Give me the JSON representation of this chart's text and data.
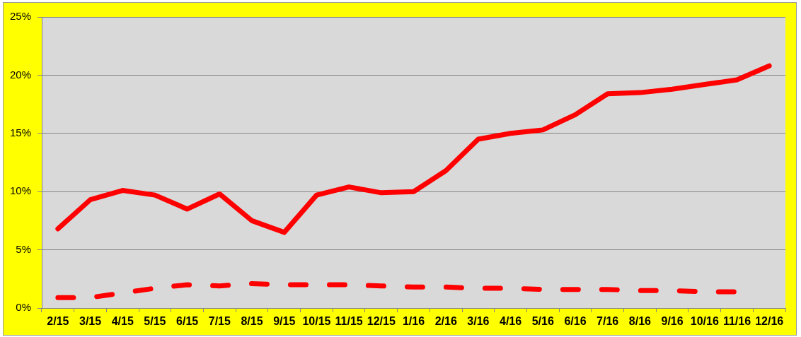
{
  "chart_data": {
    "type": "line",
    "categories": [
      "2/15",
      "3/15",
      "4/15",
      "5/15",
      "6/15",
      "7/15",
      "8/15",
      "9/15",
      "10/15",
      "11/15",
      "12/15",
      "1/16",
      "2/16",
      "3/16",
      "4/16",
      "5/16",
      "6/16",
      "7/16",
      "8/16",
      "9/16",
      "10/16",
      "11/16",
      "12/16"
    ],
    "series": [
      {
        "color": "#ff0000",
        "line_style": "solid",
        "values": [
          6.8,
          9.3,
          10.1,
          9.7,
          8.5,
          9.8,
          7.5,
          6.5,
          9.7,
          10.4,
          9.9,
          10.0,
          11.8,
          14.5,
          15.0,
          15.3,
          16.6,
          18.4,
          18.5,
          18.8,
          19.2,
          19.6,
          20.8
        ]
      },
      {
        "color": "#ff0000",
        "line_style": "dashed",
        "values": [
          0.9,
          0.9,
          1.3,
          1.7,
          2.0,
          1.9,
          2.1,
          2.0,
          2.0,
          2.0,
          1.9,
          1.8,
          1.8,
          1.7,
          1.7,
          1.6,
          1.6,
          1.6,
          1.5,
          1.5,
          1.4,
          1.4,
          null
        ]
      }
    ],
    "ylim": [
      0,
      25
    ],
    "yticks": [
      {
        "value": 0,
        "label": "0%"
      },
      {
        "value": 5,
        "label": "5%"
      },
      {
        "value": 10,
        "label": "10%"
      },
      {
        "value": 15,
        "label": "15%"
      },
      {
        "value": 20,
        "label": "20%"
      },
      {
        "value": 25,
        "label": "25%"
      }
    ],
    "grid": "y"
  }
}
